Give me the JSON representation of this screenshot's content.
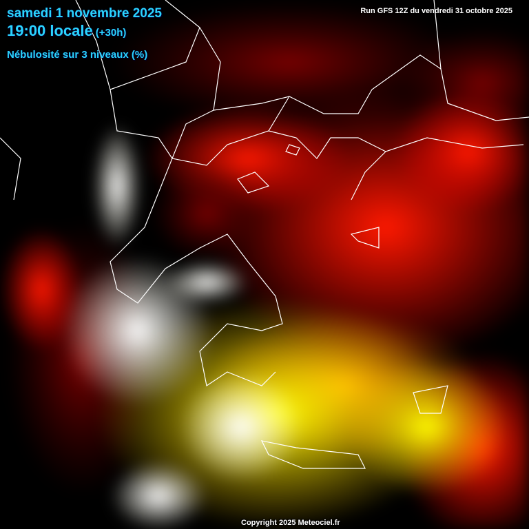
{
  "header": {
    "date": "samedi 1 novembre 2025",
    "time": "19:00 locale",
    "lead": "(+30h)",
    "parameter": "Nébulosité sur 3 niveaux (%)"
  },
  "run_info": "Run GFS 12Z du vendredi 31 octobre 2025",
  "copyright": "Copyright 2025 Meteociel.fr",
  "colors": {
    "title_text": "#2ad4ff",
    "low_cloud": "#ff0000",
    "mid_cloud": "#ffff00",
    "high_cloud": "#ffffff",
    "clear": "#000000",
    "borders": "#ffffff"
  },
  "map": {
    "region": "Greece / Aegean",
    "layer": "cloud cover 3 levels"
  }
}
